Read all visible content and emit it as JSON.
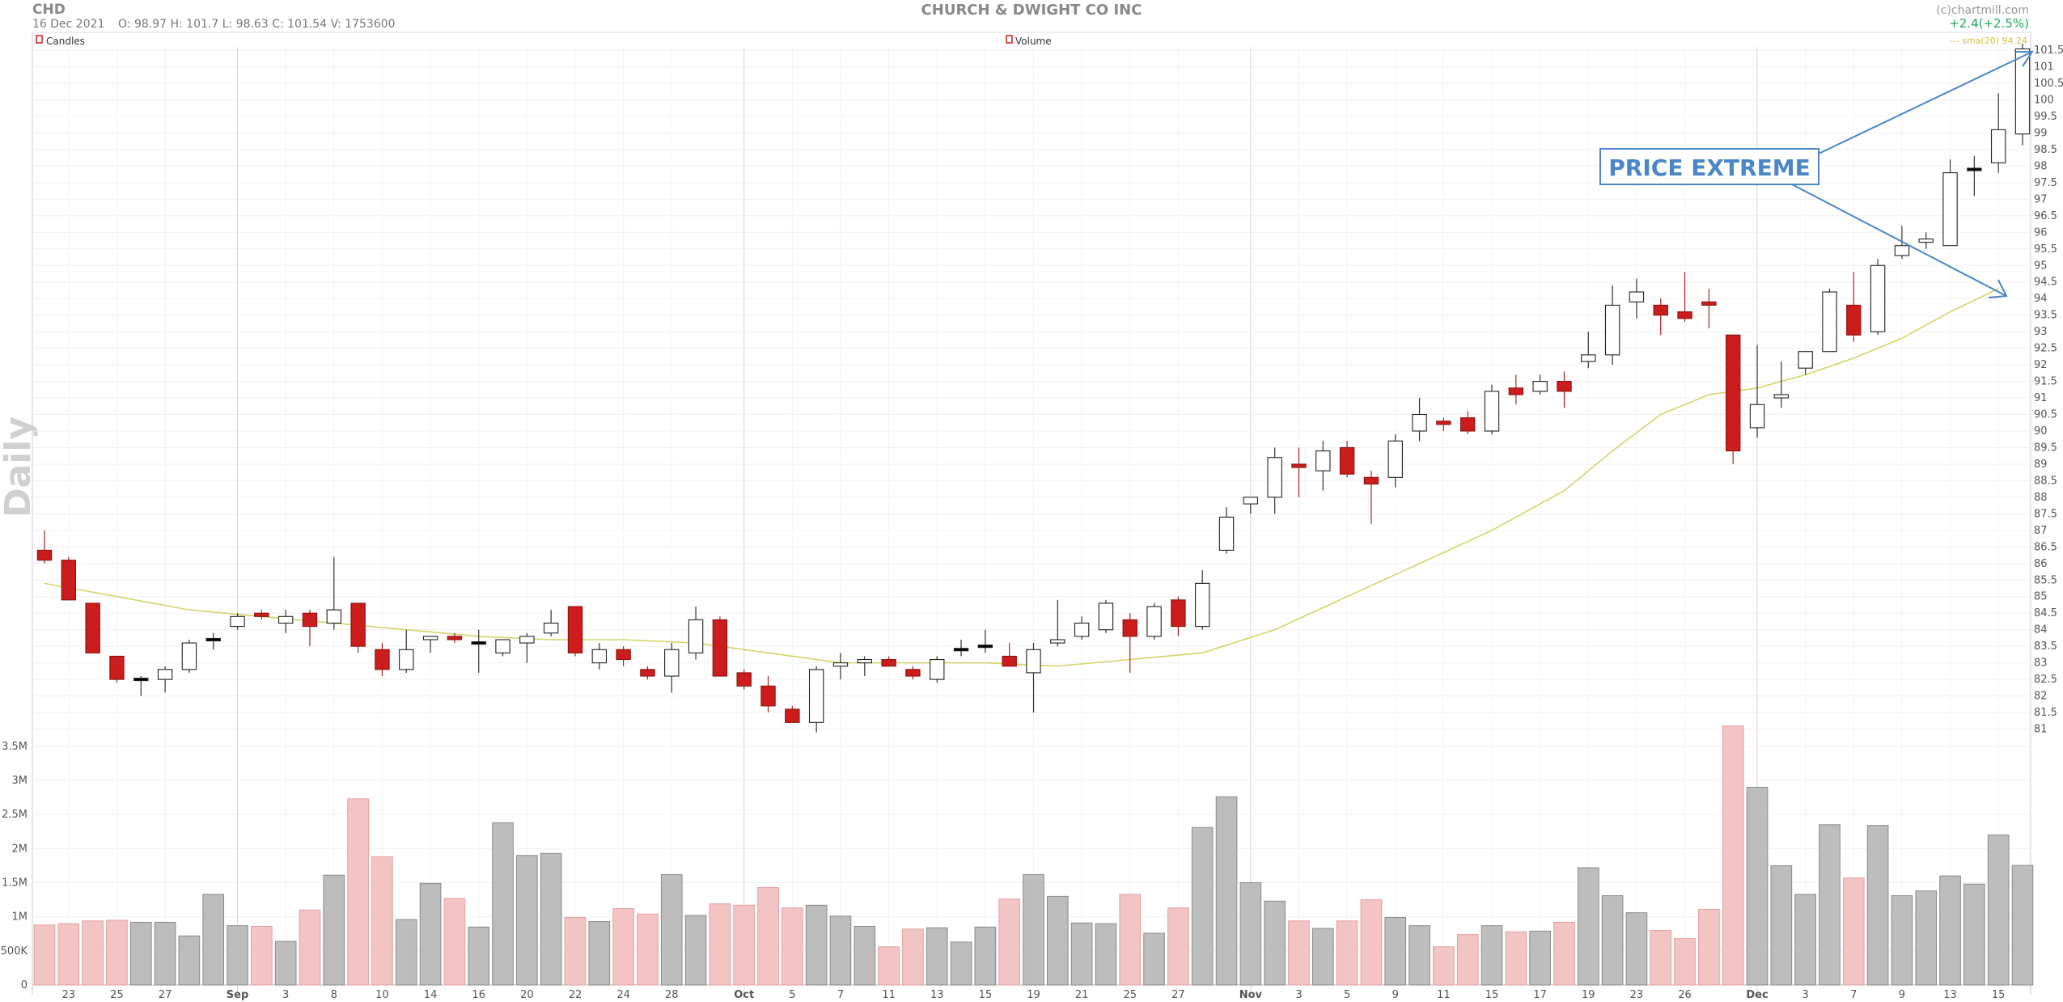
{
  "header": {
    "ticker": "CHD",
    "date": "16 Dec 2021",
    "ohlcv": "O: 98.97   H: 101.7   L: 98.63   C: 101.54    V: 1753600",
    "title": "CHURCH & DWIGHT CO INC",
    "brand": "(c)chartmill.com",
    "change": "+2.4(+2.5%)"
  },
  "legend": {
    "candles": "Candles",
    "volume": "Volume",
    "sma": "--- sma(20) 94.24"
  },
  "side_label": "Daily",
  "annotation": "PRICE EXTREME",
  "colors": {
    "up_fill": "#ffffff",
    "down_fill": "#cc1c1c",
    "doji_fill": "#000000",
    "sma": "#d4d46a",
    "vol_up": "#bdbdbd",
    "vol_down": "#f2c4c4",
    "annotation": "#4a86c8"
  },
  "chart_data": {
    "type": "candlestick",
    "price_axis": {
      "ylim": [
        80.5,
        101.6
      ],
      "ticks": [
        81,
        81.5,
        82,
        82.5,
        83,
        83.5,
        84,
        84.5,
        85,
        85.5,
        86,
        86.5,
        87,
        87.5,
        88,
        88.5,
        89,
        89.5,
        90,
        90.5,
        91,
        91.5,
        92,
        92.5,
        93,
        93.5,
        94,
        94.5,
        95,
        95.5,
        96,
        96.5,
        97,
        97.5,
        98,
        98.5,
        99,
        99.5,
        100,
        100.5,
        101,
        101.5
      ]
    },
    "volume_axis": {
      "ylim": [
        0,
        3700000
      ],
      "ticks": [
        0,
        500000,
        1000000,
        1500000,
        2000000,
        2500000,
        3000000,
        3500000
      ],
      "tick_labels": [
        "0",
        "500K",
        "1M",
        "1.5M",
        "2M",
        "2.5M",
        "3M",
        "3.5M"
      ]
    },
    "x_labels": [
      {
        "i": 1,
        "label": "23"
      },
      {
        "i": 3,
        "label": "25"
      },
      {
        "i": 5,
        "label": "27"
      },
      {
        "i": 8,
        "label": "Sep",
        "month": true
      },
      {
        "i": 10,
        "label": "3"
      },
      {
        "i": 12,
        "label": "8"
      },
      {
        "i": 14,
        "label": "10"
      },
      {
        "i": 16,
        "label": "14"
      },
      {
        "i": 18,
        "label": "16"
      },
      {
        "i": 20,
        "label": "20"
      },
      {
        "i": 22,
        "label": "22"
      },
      {
        "i": 24,
        "label": "24"
      },
      {
        "i": 26,
        "label": "28"
      },
      {
        "i": 29,
        "label": "Oct",
        "month": true
      },
      {
        "i": 31,
        "label": "5"
      },
      {
        "i": 33,
        "label": "7"
      },
      {
        "i": 35,
        "label": "11"
      },
      {
        "i": 37,
        "label": "13"
      },
      {
        "i": 39,
        "label": "15"
      },
      {
        "i": 41,
        "label": "19"
      },
      {
        "i": 43,
        "label": "21"
      },
      {
        "i": 45,
        "label": "25"
      },
      {
        "i": 47,
        "label": "27"
      },
      {
        "i": 50,
        "label": "Nov",
        "month": true
      },
      {
        "i": 52,
        "label": "3"
      },
      {
        "i": 54,
        "label": "5"
      },
      {
        "i": 56,
        "label": "9"
      },
      {
        "i": 58,
        "label": "11"
      },
      {
        "i": 60,
        "label": "15"
      },
      {
        "i": 62,
        "label": "17"
      },
      {
        "i": 64,
        "label": "19"
      },
      {
        "i": 66,
        "label": "23"
      },
      {
        "i": 68,
        "label": "26"
      },
      {
        "i": 71,
        "label": "Dec",
        "month": true
      },
      {
        "i": 73,
        "label": "3"
      },
      {
        "i": 75,
        "label": "7"
      },
      {
        "i": 77,
        "label": "9"
      },
      {
        "i": 79,
        "label": "13"
      },
      {
        "i": 81,
        "label": "15"
      }
    ],
    "month_lines": [
      8,
      29,
      50,
      71
    ],
    "sma20": [
      [
        0,
        85.4
      ],
      [
        3,
        85
      ],
      [
        6,
        84.6
      ],
      [
        9,
        84.4
      ],
      [
        12,
        84.2
      ],
      [
        15,
        84
      ],
      [
        18,
        83.8
      ],
      [
        21,
        83.7
      ],
      [
        24,
        83.7
      ],
      [
        27,
        83.6
      ],
      [
        30,
        83.3
      ],
      [
        33,
        83
      ],
      [
        36,
        83
      ],
      [
        39,
        83
      ],
      [
        42,
        82.9
      ],
      [
        45,
        83.1
      ],
      [
        48,
        83.3
      ],
      [
        51,
        84
      ],
      [
        54,
        85
      ],
      [
        57,
        86
      ],
      [
        60,
        87
      ],
      [
        63,
        88.2
      ],
      [
        65,
        89.4
      ],
      [
        67,
        90.5
      ],
      [
        69,
        91.1
      ],
      [
        71,
        91.3
      ],
      [
        73,
        91.7
      ],
      [
        75,
        92.2
      ],
      [
        77,
        92.8
      ],
      [
        79,
        93.6
      ],
      [
        81,
        94.3
      ]
    ],
    "candles": [
      {
        "o": 86.4,
        "h": 87,
        "l": 86,
        "c": 86.1,
        "v": 880000
      },
      {
        "o": 86.1,
        "h": 86.2,
        "l": 84.9,
        "c": 84.9,
        "v": 900000
      },
      {
        "o": 84.8,
        "h": 84.8,
        "l": 83.3,
        "c": 83.3,
        "v": 940000
      },
      {
        "o": 83.2,
        "h": 83.2,
        "l": 82.4,
        "c": 82.5,
        "v": 950000
      },
      {
        "o": 82.5,
        "h": 82.6,
        "l": 82,
        "c": 82.5,
        "v": 920000
      },
      {
        "o": 82.5,
        "h": 82.9,
        "l": 82.1,
        "c": 82.8,
        "v": 920000
      },
      {
        "o": 82.8,
        "h": 83.7,
        "l": 82.7,
        "c": 83.6,
        "v": 720000
      },
      {
        "o": 83.7,
        "h": 83.9,
        "l": 83.4,
        "c": 83.7,
        "v": 1330000
      },
      {
        "o": 84.1,
        "h": 84.5,
        "l": 84,
        "c": 84.4,
        "v": 870000
      },
      {
        "o": 84.5,
        "h": 84.6,
        "l": 84.3,
        "c": 84.4,
        "v": 860000
      },
      {
        "o": 84.2,
        "h": 84.6,
        "l": 83.9,
        "c": 84.4,
        "v": 640000
      },
      {
        "o": 84.5,
        "h": 84.6,
        "l": 83.5,
        "c": 84.1,
        "v": 1100000
      },
      {
        "o": 84.2,
        "h": 86.2,
        "l": 84,
        "c": 84.6,
        "v": 1610000
      },
      {
        "o": 84.8,
        "h": 84.8,
        "l": 83.3,
        "c": 83.5,
        "v": 2730000
      },
      {
        "o": 83.4,
        "h": 83.6,
        "l": 82.6,
        "c": 82.8,
        "v": 1880000
      },
      {
        "o": 82.8,
        "h": 84,
        "l": 82.7,
        "c": 83.4,
        "v": 960000
      },
      {
        "o": 83.7,
        "h": 83.8,
        "l": 83.3,
        "c": 83.8,
        "v": 1490000
      },
      {
        "o": 83.8,
        "h": 83.9,
        "l": 83.6,
        "c": 83.7,
        "v": 1270000
      },
      {
        "o": 83.6,
        "h": 84,
        "l": 82.7,
        "c": 83.6,
        "v": 850000
      },
      {
        "o": 83.3,
        "h": 83.7,
        "l": 83.2,
        "c": 83.7,
        "v": 2380000
      },
      {
        "o": 83.6,
        "h": 83.9,
        "l": 83,
        "c": 83.8,
        "v": 1900000
      },
      {
        "o": 83.9,
        "h": 84.6,
        "l": 83.8,
        "c": 84.2,
        "v": 1930000
      },
      {
        "o": 84.7,
        "h": 84.7,
        "l": 83.2,
        "c": 83.3,
        "v": 990000
      },
      {
        "o": 83,
        "h": 83.6,
        "l": 82.8,
        "c": 83.4,
        "v": 930000
      },
      {
        "o": 83.4,
        "h": 83.5,
        "l": 82.9,
        "c": 83.1,
        "v": 1120000
      },
      {
        "o": 82.8,
        "h": 82.9,
        "l": 82.5,
        "c": 82.6,
        "v": 1040000
      },
      {
        "o": 82.6,
        "h": 83.6,
        "l": 82.1,
        "c": 83.4,
        "v": 1620000
      },
      {
        "o": 83.3,
        "h": 84.7,
        "l": 83.1,
        "c": 84.3,
        "v": 1020000
      },
      {
        "o": 84.3,
        "h": 84.4,
        "l": 82.6,
        "c": 82.6,
        "v": 1190000
      },
      {
        "o": 82.7,
        "h": 82.8,
        "l": 82.2,
        "c": 82.3,
        "v": 1170000
      },
      {
        "o": 82.3,
        "h": 82.6,
        "l": 81.5,
        "c": 81.7,
        "v": 1430000
      },
      {
        "o": 81.6,
        "h": 81.7,
        "l": 81.2,
        "c": 81.2,
        "v": 1130000
      },
      {
        "o": 81.2,
        "h": 82.9,
        "l": 80.9,
        "c": 82.8,
        "v": 1170000
      },
      {
        "o": 82.9,
        "h": 83.3,
        "l": 82.5,
        "c": 83,
        "v": 1010000
      },
      {
        "o": 83,
        "h": 83.2,
        "l": 82.6,
        "c": 83.1,
        "v": 860000
      },
      {
        "o": 83.1,
        "h": 83.2,
        "l": 82.9,
        "c": 82.9,
        "v": 560000
      },
      {
        "o": 82.8,
        "h": 82.9,
        "l": 82.5,
        "c": 82.6,
        "v": 820000
      },
      {
        "o": 82.5,
        "h": 83.2,
        "l": 82.4,
        "c": 83.1,
        "v": 840000
      },
      {
        "o": 83.4,
        "h": 83.7,
        "l": 83.2,
        "c": 83.4,
        "v": 630000
      },
      {
        "o": 83.5,
        "h": 84,
        "l": 83.3,
        "c": 83.5,
        "v": 850000
      },
      {
        "o": 83.2,
        "h": 83.6,
        "l": 82.9,
        "c": 82.9,
        "v": 1260000
      },
      {
        "o": 82.7,
        "h": 83.6,
        "l": 81.5,
        "c": 83.4,
        "v": 1620000
      },
      {
        "o": 83.6,
        "h": 84.9,
        "l": 83.5,
        "c": 83.7,
        "v": 1300000
      },
      {
        "o": 83.8,
        "h": 84.4,
        "l": 83.7,
        "c": 84.2,
        "v": 910000
      },
      {
        "o": 84,
        "h": 84.9,
        "l": 83.9,
        "c": 84.8,
        "v": 900000
      },
      {
        "o": 84.3,
        "h": 84.5,
        "l": 82.7,
        "c": 83.8,
        "v": 1330000
      },
      {
        "o": 83.8,
        "h": 84.8,
        "l": 83.7,
        "c": 84.7,
        "v": 760000
      },
      {
        "o": 84.9,
        "h": 85,
        "l": 83.8,
        "c": 84.1,
        "v": 1130000
      },
      {
        "o": 84.1,
        "h": 85.8,
        "l": 84,
        "c": 85.4,
        "v": 2310000
      },
      {
        "o": 86.4,
        "h": 87.7,
        "l": 86.3,
        "c": 87.4,
        "v": 2760000
      },
      {
        "o": 87.8,
        "h": 88,
        "l": 87.5,
        "c": 88,
        "v": 1500000
      },
      {
        "o": 88.0,
        "h": 89.5,
        "l": 87.5,
        "c": 89.2,
        "v": 1230000
      },
      {
        "o": 89,
        "h": 89.5,
        "l": 88,
        "c": 88.9,
        "v": 940000
      },
      {
        "o": 88.8,
        "h": 89.7,
        "l": 88.2,
        "c": 89.4,
        "v": 830000
      },
      {
        "o": 89.5,
        "h": 89.7,
        "l": 88.6,
        "c": 88.7,
        "v": 940000
      },
      {
        "o": 88.6,
        "h": 88.8,
        "l": 87.2,
        "c": 88.4,
        "v": 1250000
      },
      {
        "o": 88.6,
        "h": 89.9,
        "l": 88.3,
        "c": 89.7,
        "v": 990000
      },
      {
        "o": 90,
        "h": 91,
        "l": 89.7,
        "c": 90.5,
        "v": 870000
      },
      {
        "o": 90.3,
        "h": 90.4,
        "l": 90,
        "c": 90.2,
        "v": 560000
      },
      {
        "o": 90.4,
        "h": 90.6,
        "l": 89.9,
        "c": 90,
        "v": 740000
      },
      {
        "o": 90,
        "h": 91.4,
        "l": 89.9,
        "c": 91.2,
        "v": 870000
      },
      {
        "o": 91.3,
        "h": 91.7,
        "l": 90.8,
        "c": 91.1,
        "v": 780000
      },
      {
        "o": 91.2,
        "h": 91.7,
        "l": 91.1,
        "c": 91.5,
        "v": 790000
      },
      {
        "o": 91.5,
        "h": 91.8,
        "l": 90.7,
        "c": 91.2,
        "v": 920000
      },
      {
        "o": 92.1,
        "h": 93,
        "l": 91.9,
        "c": 92.3,
        "v": 1720000
      },
      {
        "o": 92.3,
        "h": 94.4,
        "l": 92,
        "c": 93.8,
        "v": 1310000
      },
      {
        "o": 93.9,
        "h": 94.6,
        "l": 93.4,
        "c": 94.2,
        "v": 1060000
      },
      {
        "o": 93.8,
        "h": 94,
        "l": 92.9,
        "c": 93.5,
        "v": 800000
      },
      {
        "o": 93.6,
        "h": 94.8,
        "l": 93.3,
        "c": 93.4,
        "v": 680000
      },
      {
        "o": 93.9,
        "h": 94.3,
        "l": 93.1,
        "c": 93.8,
        "v": 1110000
      },
      {
        "o": 92.9,
        "h": 92.9,
        "l": 89,
        "c": 89.4,
        "v": 3800000
      },
      {
        "o": 90.1,
        "h": 92.6,
        "l": 89.8,
        "c": 90.8,
        "v": 2900000
      },
      {
        "o": 91,
        "h": 92.1,
        "l": 90.7,
        "c": 91.1,
        "v": 1750000
      },
      {
        "o": 91.9,
        "h": 92.4,
        "l": 91.7,
        "c": 92.4,
        "v": 1330000
      },
      {
        "o": 92.4,
        "h": 94.3,
        "l": 92.4,
        "c": 94.2,
        "v": 2350000
      },
      {
        "o": 93.8,
        "h": 94.8,
        "l": 92.7,
        "c": 92.9,
        "v": 1570000
      },
      {
        "o": 93,
        "h": 95.2,
        "l": 92.9,
        "c": 95,
        "v": 2340000
      },
      {
        "o": 95.3,
        "h": 96.2,
        "l": 95.2,
        "c": 95.6,
        "v": 1310000
      },
      {
        "o": 95.7,
        "h": 96,
        "l": 95.5,
        "c": 95.8,
        "v": 1380000
      },
      {
        "o": 95.6,
        "h": 98.2,
        "l": 95.6,
        "c": 97.8,
        "v": 1600000
      },
      {
        "o": 97.9,
        "h": 98.3,
        "l": 97.1,
        "c": 97.9,
        "v": 1480000
      },
      {
        "o": 98.1,
        "h": 100.2,
        "l": 97.8,
        "c": 99.1,
        "v": 2200000
      },
      {
        "o": 98.97,
        "h": 101.7,
        "l": 98.63,
        "c": 101.54,
        "v": 1753600
      }
    ]
  }
}
